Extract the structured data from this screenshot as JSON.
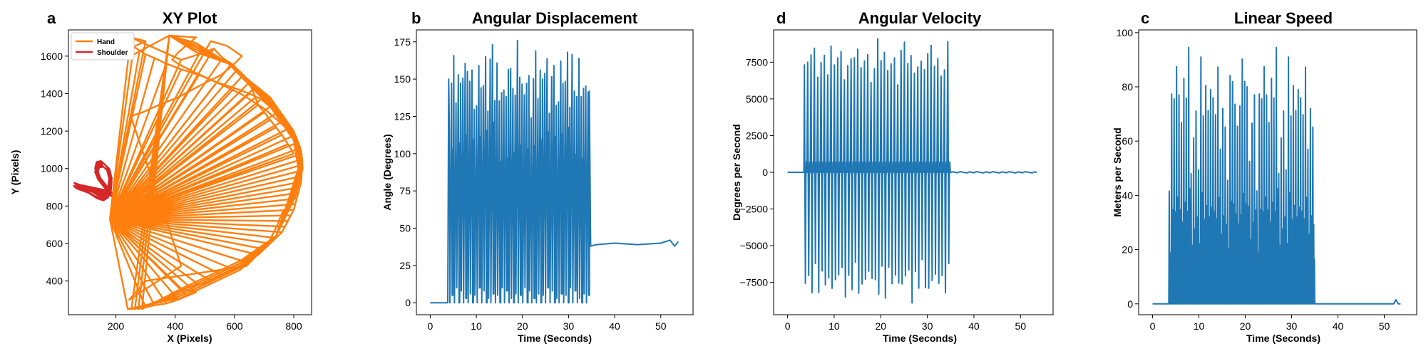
{
  "colors": {
    "hand": "#ff7f0e",
    "shoulder": "#d62728",
    "series": "#1f77b4"
  },
  "chart_data": [
    {
      "id": "xy",
      "type": "line",
      "letter": "a",
      "title": "XY Plot",
      "xlabel": "X (Pixels)",
      "ylabel": "Y (Pixels)",
      "xlim": [
        40,
        860
      ],
      "ylim": [
        220,
        1740
      ],
      "xticks": [
        200,
        400,
        600,
        800
      ],
      "yticks": [
        400,
        600,
        800,
        1000,
        1200,
        1400,
        1600
      ],
      "legend": {
        "placement": "top-left",
        "entries": [
          "Hand",
          "Shoulder"
        ]
      },
      "series": [
        {
          "name": "Hand",
          "color": "#ff7f0e",
          "x": [
            180,
            520,
            575,
            625,
            600,
            555,
            480,
            410,
            345,
            290,
            250,
            310,
            375,
            420,
            245,
            300,
            640,
            690,
            720,
            745,
            760,
            780,
            795,
            810,
            825,
            830,
            828,
            815,
            780,
            700,
            620,
            540,
            470,
            420,
            390,
            410,
            470,
            380,
            250
          ],
          "y": [
            730,
            1680,
            1655,
            1600,
            1560,
            1500,
            1440,
            1380,
            1340,
            1300,
            1280,
            1000,
            700,
            480,
            300,
            400,
            480,
            560,
            620,
            700,
            760,
            800,
            880,
            950,
            990,
            1000,
            1050,
            1120,
            1210,
            1320,
            1400,
            1460,
            1510,
            1550,
            1580,
            1620,
            1700,
            1710,
            1600
          ],
          "fan": {
            "origin": [
              180,
              730
            ],
            "x": [
              240,
              300,
              330,
              370,
              410,
              440,
              470,
              420,
              480,
              520,
              560,
              600,
              640,
              680,
              700,
              720,
              740,
              760,
              770,
              780,
              790,
              800,
              805,
              810,
              815,
              820,
              825,
              826,
              827,
              828,
              828,
              826,
              822,
              815,
              805,
              790,
              770,
              745,
              720,
              690,
              650,
              600,
              540,
              480,
              420,
              370,
              330,
              300,
              280,
              260,
              300,
              250,
              420,
              480,
              530,
              560,
              590,
              610,
              630,
              650,
              660,
              670,
              680,
              700,
              720,
              740,
              760,
              780,
              800
            ],
            "y": [
              250,
              260,
              270,
              280,
              300,
              320,
              340,
              360,
              380,
              400,
              430,
              460,
              500,
              540,
              570,
              600,
              630,
              660,
              690,
              720,
              750,
              780,
              810,
              840,
              870,
              900,
              930,
              960,
              990,
              1020,
              1050,
              1080,
              1110,
              1140,
              1180,
              1220,
              1260,
              1300,
              1330,
              1370,
              1400,
              1430,
              1460,
              1500,
              1530,
              1560,
              1590,
              1610,
              1630,
              1650,
              1680,
              1700,
              1580,
              1610,
              1640,
              1590,
              1560,
              1530,
              1500,
              1460,
              1420,
              1380,
              1340,
              1300,
              1260,
              1220,
              1180,
              1130,
              1080
            ]
          }
        },
        {
          "name": "Shoulder",
          "color": "#d62728",
          "x": [
            58,
            100,
            130,
            150,
            165,
            175,
            178,
            170,
            150,
            135,
            130,
            140,
            155,
            170,
            178
          ],
          "y": [
            925,
            900,
            870,
            860,
            875,
            910,
            960,
            1010,
            1040,
            1035,
            1000,
            960,
            930,
            900,
            880
          ]
        }
      ]
    },
    {
      "id": "ang",
      "type": "line",
      "letter": "b",
      "title": "Angular Displacement",
      "xlabel": "Time (Seconds)",
      "ylabel": "Angle (Degrees)",
      "xlim": [
        -3,
        57
      ],
      "ylim": [
        -8,
        183
      ],
      "xticks": [
        0,
        10,
        20,
        30,
        40,
        50
      ],
      "yticks": [
        0,
        25,
        50,
        75,
        100,
        125,
        150,
        175
      ],
      "series": [
        {
          "x": [
            0,
            3.8,
            4.0,
            34.5,
            34.8,
            36,
            40,
            45,
            50,
            52,
            53,
            53.8
          ],
          "y": [
            0,
            0,
            150,
            142,
            38,
            39,
            40,
            39,
            40,
            42,
            38,
            41
          ],
          "osc": {
            "start": 4.0,
            "end": 34.6,
            "cycles": 62,
            "max": [
              148,
              165,
              172,
              160,
              168,
              150,
              176,
              173,
              155,
              170,
              165,
              158
            ],
            "min": [
              0,
              5,
              0,
              10,
              0,
              8,
              0,
              3,
              0,
              6
            ]
          }
        }
      ]
    },
    {
      "id": "vel",
      "type": "line",
      "letter": "d",
      "title": "Angular Velocity",
      "xlabel": "Time (Seconds)",
      "ylabel": "Degrees per Second",
      "xlim": [
        -3,
        57
      ],
      "ylim": [
        -9700,
        9700
      ],
      "xticks": [
        0,
        10,
        20,
        30,
        40,
        50
      ],
      "yticks": [
        -7500,
        -5000,
        -2500,
        0,
        2500,
        5000,
        7500
      ],
      "series": [
        {
          "x": [
            0,
            3.5,
            35,
            53.5
          ],
          "y": [
            0,
            0,
            0,
            0
          ],
          "osc": {
            "start": 3.5,
            "end": 35.0,
            "cycles": 44,
            "max": [
              8600,
              7500,
              8200,
              8900,
              7000,
              8300,
              9100,
              7800
            ],
            "min": [
              -8900,
              -7600,
              -8200,
              -7000,
              -8500,
              -7900,
              -8300,
              -7200
            ]
          }
        }
      ]
    },
    {
      "id": "spd",
      "type": "line",
      "letter": "c",
      "title": "Linear Speed",
      "xlabel": "Time (Seconds)",
      "ylabel": "Meters per Second",
      "xlim": [
        -3,
        57
      ],
      "ylim": [
        -4,
        101
      ],
      "xticks": [
        0,
        10,
        20,
        30,
        40,
        50
      ],
      "yticks": [
        0,
        20,
        40,
        60,
        80,
        100
      ],
      "series": [
        {
          "x": [
            0,
            3.5,
            35,
            52,
            52.5,
            53,
            53.5
          ],
          "y": [
            0,
            0,
            0,
            0,
            1.5,
            0,
            0
          ],
          "osc": {
            "start": 3.5,
            "end": 35.0,
            "cycles": 60,
            "max": [
              52,
              91,
              84,
              92,
              77,
              81,
              95,
              82,
              97,
              60,
              72,
              79
            ],
            "min": [
              0,
              0,
              0,
              0,
              0
            ]
          }
        }
      ]
    }
  ]
}
